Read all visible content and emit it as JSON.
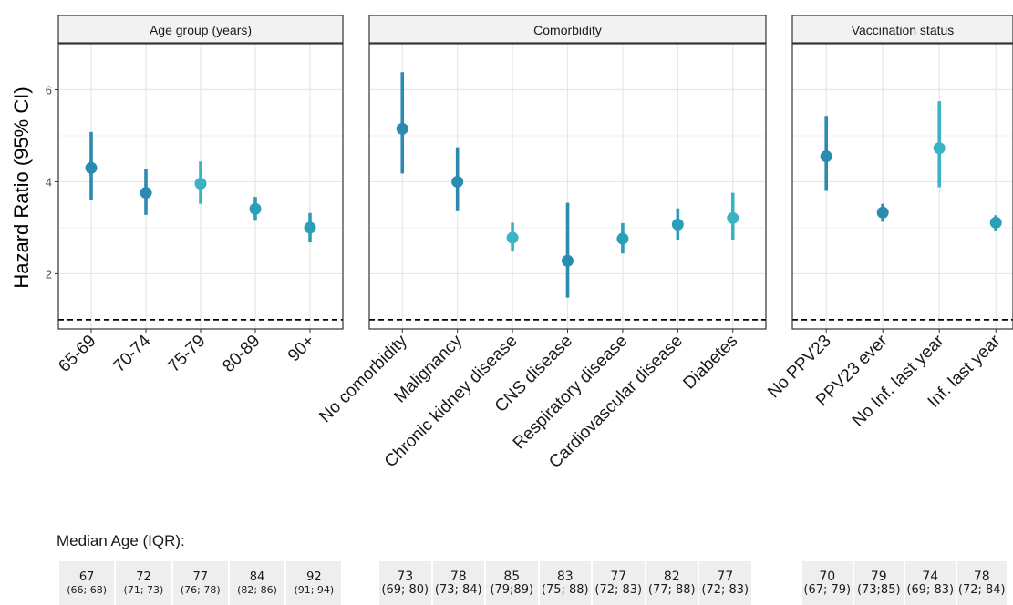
{
  "chart_data": {
    "type": "scatter",
    "ylabel": "Hazard Ratio (95% CI)",
    "ylim": [
      0.8,
      7.0
    ],
    "yticks": [
      2,
      4,
      6
    ],
    "reference_line": 1,
    "grid": true,
    "panels": [
      {
        "strip": "Age group (years)",
        "categories": [
          "65-69",
          "70-74",
          "75-79",
          "80-89",
          "90+"
        ],
        "estimate": [
          4.3,
          3.76,
          3.96,
          3.41,
          3.0
        ],
        "lower": [
          3.6,
          3.28,
          3.52,
          3.15,
          2.68
        ],
        "upper": [
          5.08,
          4.28,
          4.44,
          3.67,
          3.32
        ],
        "colors": [
          "#2a8ab0",
          "#2a8ab0",
          "#3ab3c4",
          "#2aa0b8",
          "#2aa0b8"
        ],
        "median_age": [
          "67",
          "72",
          "77",
          "84",
          "92"
        ],
        "iqr": [
          "(66; 68)",
          "(71; 73)",
          "(76; 78)",
          "(82; 86)",
          "(91; 94)"
        ]
      },
      {
        "strip": "Comorbidity",
        "categories": [
          "No comorbidity",
          "Malignancy",
          "Chronic kidney disease",
          "CNS disease",
          "Respiratory disease",
          "Cardiovascular disease",
          "Diabetes"
        ],
        "estimate": [
          5.15,
          4.0,
          2.78,
          2.28,
          2.76,
          3.07,
          3.21
        ],
        "lower": [
          4.18,
          3.36,
          2.48,
          1.48,
          2.44,
          2.74,
          2.74
        ],
        "upper": [
          6.38,
          4.75,
          3.11,
          3.54,
          3.1,
          3.42,
          3.76
        ],
        "colors": [
          "#2a8ab0",
          "#2a8ab0",
          "#3ab3c4",
          "#2a8ab0",
          "#2aa0b8",
          "#2aa0b8",
          "#3ab3c4"
        ],
        "median_age": [
          "73",
          "78",
          "85",
          "83",
          "77",
          "82",
          "77"
        ],
        "iqr": [
          "(69; 80)",
          "(73; 84)",
          "(79;89)",
          "(75; 88)",
          "(72; 83)",
          "(77; 88)",
          "(72; 83)"
        ]
      },
      {
        "strip": "Vaccination status",
        "categories": [
          "No PPV23",
          "PPV23 ever",
          "No Inf. last year",
          "Inf. last year"
        ],
        "estimate": [
          4.55,
          3.33,
          4.73,
          3.11
        ],
        "lower": [
          3.8,
          3.13,
          3.88,
          2.94
        ],
        "upper": [
          5.43,
          3.52,
          5.75,
          3.27
        ],
        "colors": [
          "#2a8ab0",
          "#2a8ab0",
          "#3ab3c4",
          "#2aa0b8"
        ],
        "median_age": [
          "70",
          "79",
          "74",
          "78"
        ],
        "iqr": [
          "(67; 79)",
          "(73;85)",
          "(69; 83)",
          "(72; 84)"
        ]
      }
    ]
  },
  "median_title": "Median Age (IQR):"
}
